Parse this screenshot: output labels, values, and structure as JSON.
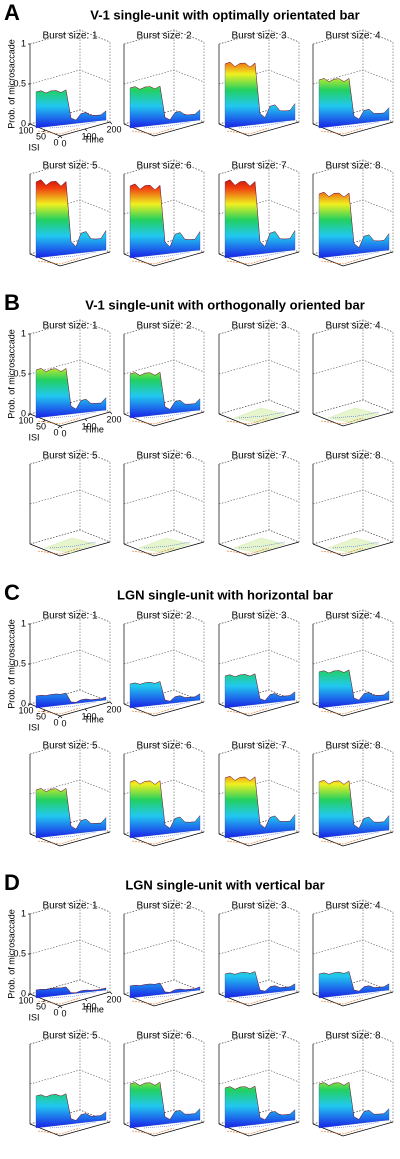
{
  "panels": [
    {
      "letter": "A",
      "title": "V-1 single-unit with optimally orientated bar",
      "zticks": [
        1,
        0.5,
        0
      ],
      "zlabel": "Prob. of microsaccade",
      "isi_ticks": [
        100,
        50,
        0
      ],
      "isi_label": "ISI",
      "time_ticks": [
        0,
        100,
        200
      ],
      "time_label": "Time",
      "plots": [
        {
          "title": "Burst size: 1",
          "peak": 0.45
        },
        {
          "title": "Burst size: 2",
          "peak": 0.5
        },
        {
          "title": "Burst size: 3",
          "peak": 0.8
        },
        {
          "title": "Burst size: 4",
          "peak": 0.6
        },
        {
          "title": "Burst size: 5",
          "peak": 0.95
        },
        {
          "title": "Burst size: 6",
          "peak": 0.9
        },
        {
          "title": "Burst size: 7",
          "peak": 0.95
        },
        {
          "title": "Burst size: 8",
          "peak": 0.8
        }
      ]
    },
    {
      "letter": "B",
      "title": "V-1 single-unit with orthogonally oriented bar",
      "zticks": [
        1,
        0.5,
        0
      ],
      "zlabel": "Prob. of microsaccade",
      "isi_ticks": [
        100,
        50,
        0
      ],
      "isi_label": "ISI",
      "time_ticks": [
        0,
        100,
        200
      ],
      "time_label": "Time",
      "plots": [
        {
          "title": "Burst size: 1",
          "peak": 0.6
        },
        {
          "title": "Burst size: 2",
          "peak": 0.55
        },
        {
          "title": "Burst size: 3",
          "peak": 0
        },
        {
          "title": "Burst size: 4",
          "peak": 0
        },
        {
          "title": "Burst size: 5",
          "peak": 0
        },
        {
          "title": "Burst size: 6",
          "peak": 0
        },
        {
          "title": "Burst size: 7",
          "peak": 0
        },
        {
          "title": "Burst size: 8",
          "peak": 0
        }
      ]
    },
    {
      "letter": "C",
      "title": "LGN single-unit with horizontal bar",
      "zticks": [
        1,
        0.5,
        0
      ],
      "zlabel": "Prob. of microsaccade",
      "isi_ticks": [
        100,
        50,
        0
      ],
      "isi_label": "ISI",
      "time_ticks": [
        0,
        100,
        200
      ],
      "time_label": "Time",
      "plots": [
        {
          "title": "Burst size: 1",
          "peak": 0.15
        },
        {
          "title": "Burst size: 2",
          "peak": 0.3
        },
        {
          "title": "Burst size: 3",
          "peak": 0.4
        },
        {
          "title": "Burst size: 4",
          "peak": 0.45
        },
        {
          "title": "Burst size: 5",
          "peak": 0.6
        },
        {
          "title": "Burst size: 6",
          "peak": 0.7
        },
        {
          "title": "Burst size: 7",
          "peak": 0.75
        },
        {
          "title": "Burst size: 8",
          "peak": 0.7
        }
      ]
    },
    {
      "letter": "D",
      "title": "LGN single-unit with vertical bar",
      "zticks": [
        1,
        0.5,
        0
      ],
      "zlabel": "Prob. of microsaccade",
      "isi_ticks": [
        100,
        50,
        0
      ],
      "isi_label": "ISI",
      "time_ticks": [
        0,
        100,
        200
      ],
      "time_label": "Time",
      "plots": [
        {
          "title": "Burst size: 1",
          "peak": 0.1
        },
        {
          "title": "Burst size: 2",
          "peak": 0.15
        },
        {
          "title": "Burst size: 3",
          "peak": 0.3
        },
        {
          "title": "Burst size: 4",
          "peak": 0.3
        },
        {
          "title": "Burst size: 5",
          "peak": 0.4
        },
        {
          "title": "Burst size: 6",
          "peak": 0.55
        },
        {
          "title": "Burst size: 7",
          "peak": 0.5
        },
        {
          "title": "Burst size: 8",
          "peak": 0.55
        }
      ]
    }
  ]
}
